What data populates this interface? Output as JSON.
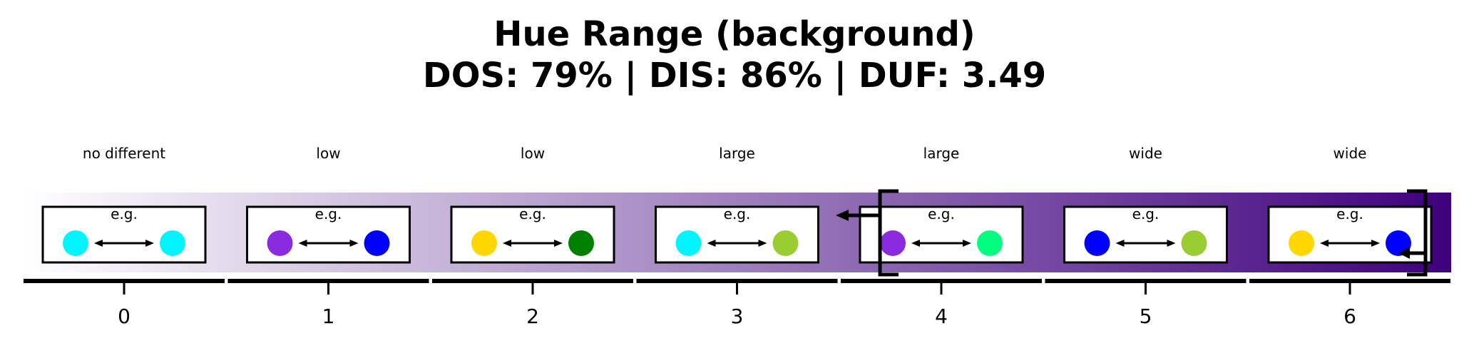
{
  "chart_data": {
    "type": "scale",
    "title": "Hue Range (background)",
    "subtitle": "DOS: 79% | DIS: 86% | DUF: 3.49",
    "ticks": [
      "0",
      "1",
      "2",
      "3",
      "4",
      "5",
      "6"
    ],
    "categories": [
      "no different",
      "low",
      "low",
      "large",
      "large",
      "wide",
      "wide"
    ],
    "example_label": "e.g.",
    "examples": [
      {
        "left": "#00f5ff",
        "right": "#00f5ff"
      },
      {
        "left": "#8a2be2",
        "right": "#0000ff"
      },
      {
        "left": "#ffd700",
        "right": "#008000"
      },
      {
        "left": "#00f5ff",
        "right": "#9acd32"
      },
      {
        "left": "#8a2be2",
        "right": "#00ff7f"
      },
      {
        "left": "#0000ff",
        "right": "#9acd32"
      },
      {
        "left": "#ffd700",
        "right": "#0000ff"
      }
    ],
    "gradient": {
      "start": "#ffffff",
      "end": "#3f007d"
    },
    "bracket_range": [
      3.7,
      6.37
    ]
  }
}
